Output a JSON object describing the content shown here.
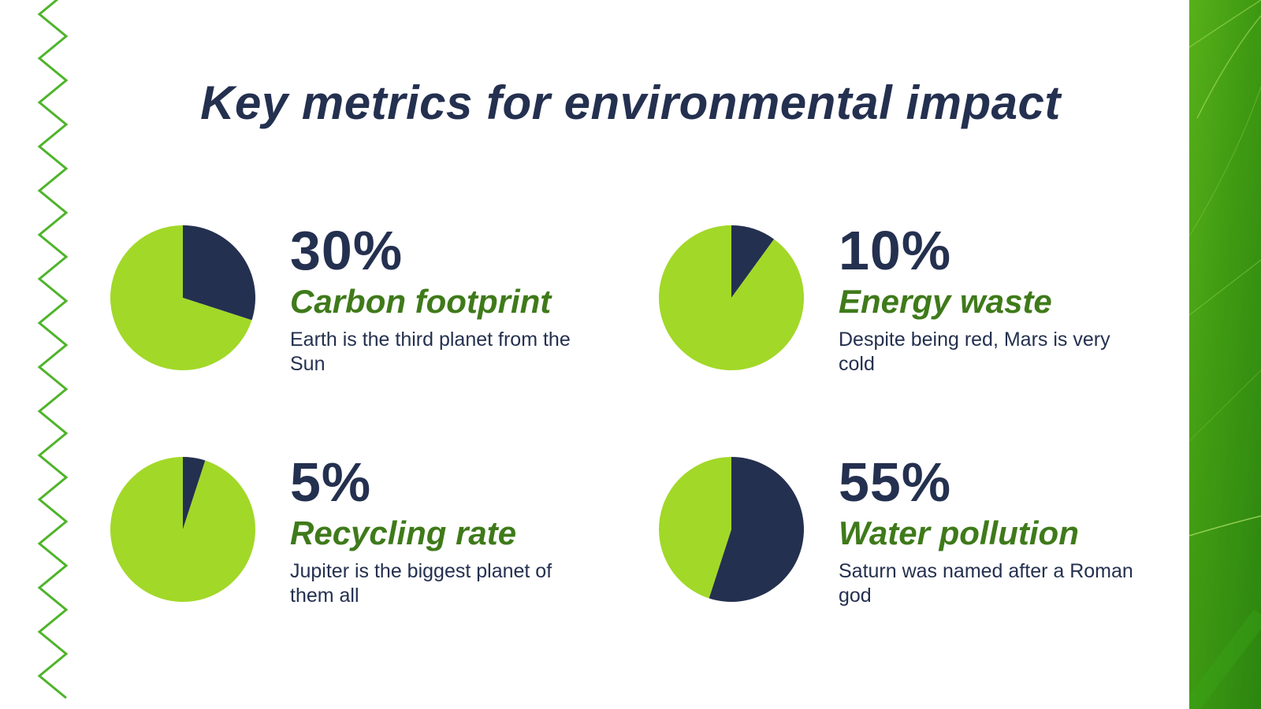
{
  "slide": {
    "title": "Key metrics for environmental impact"
  },
  "colors": {
    "navy": "#24304f",
    "lime": "#a2d828",
    "darkGreen": "#3f7a1a",
    "panelGreen": "#3e9a12",
    "zigzag": "#4eb42a"
  },
  "chart_data": [
    {
      "type": "pie",
      "value": 30,
      "percent_text": "30%",
      "label": "Carbon footprint",
      "description": "Earth is the third planet from the Sun",
      "slices": [
        {
          "name": "metric",
          "value": 30,
          "color": "#24304f"
        },
        {
          "name": "remainder",
          "value": 70,
          "color": "#a2d828"
        }
      ]
    },
    {
      "type": "pie",
      "value": 10,
      "percent_text": "10%",
      "label": "Energy waste",
      "description": "Despite being red, Mars is very cold",
      "slices": [
        {
          "name": "metric",
          "value": 10,
          "color": "#24304f"
        },
        {
          "name": "remainder",
          "value": 90,
          "color": "#a2d828"
        }
      ]
    },
    {
      "type": "pie",
      "value": 5,
      "percent_text": "5%",
      "label": "Recycling rate",
      "description": "Jupiter is the biggest planet of them all",
      "slices": [
        {
          "name": "metric",
          "value": 5,
          "color": "#24304f"
        },
        {
          "name": "remainder",
          "value": 95,
          "color": "#a2d828"
        }
      ]
    },
    {
      "type": "pie",
      "value": 55,
      "percent_text": "55%",
      "label": "Water pollution",
      "description": "Saturn was named after a Roman god",
      "slices": [
        {
          "name": "metric",
          "value": 55,
          "color": "#24304f"
        },
        {
          "name": "remainder",
          "value": 45,
          "color": "#a2d828"
        }
      ]
    }
  ]
}
